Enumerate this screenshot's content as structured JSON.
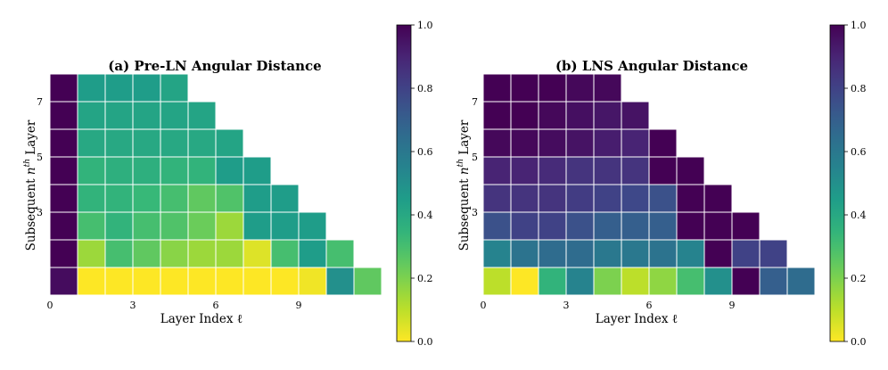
{
  "colormap": {
    "name": "viridis",
    "stops": [
      "#440154",
      "#482878",
      "#3e4989",
      "#31688e",
      "#26828e",
      "#1f9e89",
      "#35b779",
      "#6ece58",
      "#b5de2b",
      "#fde725"
    ]
  },
  "chart_data": [
    {
      "type": "heatmap",
      "title": "(a) Pre-LN Angular Distance",
      "xlabel": "Layer Index ℓ",
      "ylabel_parts": [
        "Subsequent ",
        "n",
        "th",
        " Layer"
      ],
      "x_ticks": [
        "0",
        "3",
        "6",
        "9"
      ],
      "y_ticks": [
        "7",
        "5",
        "3"
      ],
      "vmin": 0.0,
      "vmax": 1.0,
      "colorbar_ticks": [
        "0.0",
        "0.2",
        "0.4",
        "0.6",
        "0.8",
        "1.0"
      ],
      "rows_bottom_to_top": [
        [
          0.97,
          0.0,
          0.0,
          0.0,
          0.0,
          0.0,
          0.0,
          0.0,
          0.0,
          0.02,
          0.5,
          0.25
        ],
        [
          1.0,
          0.15,
          0.3,
          0.25,
          0.18,
          0.15,
          0.15,
          0.05,
          0.3,
          0.45,
          0.3
        ],
        [
          1.0,
          0.3,
          0.35,
          0.3,
          0.28,
          0.23,
          0.15,
          0.45,
          0.45,
          0.45
        ],
        [
          1.0,
          0.35,
          0.35,
          0.33,
          0.3,
          0.25,
          0.28,
          0.45,
          0.45
        ],
        [
          1.0,
          0.35,
          0.37,
          0.37,
          0.35,
          0.35,
          0.45,
          0.45
        ],
        [
          1.0,
          0.4,
          0.4,
          0.4,
          0.4,
          0.4,
          0.42
        ],
        [
          1.0,
          0.42,
          0.42,
          0.42,
          0.42,
          0.42
        ],
        [
          1.0,
          0.45,
          0.45,
          0.45,
          0.42
        ]
      ]
    },
    {
      "type": "heatmap",
      "title": "(b) LNS Angular Distance",
      "xlabel": "Layer Index ℓ",
      "ylabel_parts": [
        "Subsequent ",
        "n",
        "th",
        " Layer"
      ],
      "x_ticks": [
        "0",
        "3",
        "6",
        "9"
      ],
      "y_ticks": [
        "7",
        "5",
        "3"
      ],
      "vmin": 0.0,
      "vmax": 1.0,
      "colorbar_ticks": [
        "0.0",
        "0.2",
        "0.4",
        "0.6",
        "0.8",
        "1.0"
      ],
      "rows_bottom_to_top": [
        [
          0.1,
          0.0,
          0.35,
          0.55,
          0.2,
          0.1,
          0.17,
          0.3,
          0.5,
          1.0,
          0.7,
          0.65
        ],
        [
          0.55,
          0.62,
          0.65,
          0.65,
          0.6,
          0.6,
          0.62,
          0.55,
          1.0,
          0.8,
          0.8
        ],
        [
          0.75,
          0.8,
          0.8,
          0.75,
          0.7,
          0.7,
          0.7,
          1.0,
          1.0,
          1.0
        ],
        [
          0.85,
          0.85,
          0.85,
          0.82,
          0.8,
          0.78,
          0.75,
          1.0,
          1.0
        ],
        [
          0.9,
          0.9,
          0.88,
          0.85,
          0.85,
          0.85,
          1.0,
          1.0
        ],
        [
          0.98,
          0.98,
          0.97,
          0.95,
          0.92,
          0.9,
          1.0
        ],
        [
          1.0,
          1.0,
          0.98,
          0.96,
          0.94,
          0.95
        ],
        [
          1.0,
          1.0,
          1.0,
          0.98,
          0.98
        ]
      ]
    }
  ]
}
